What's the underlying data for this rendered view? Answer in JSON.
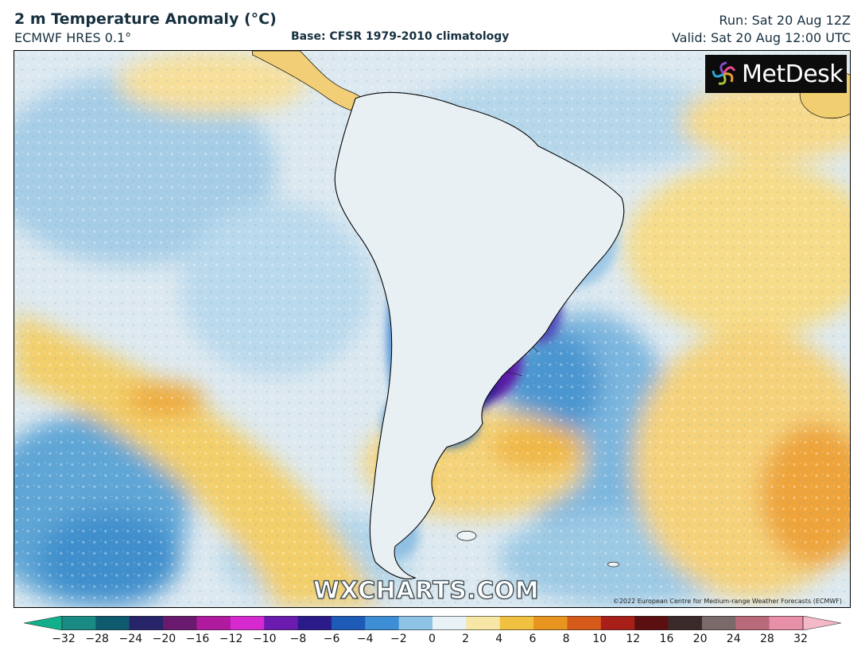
{
  "header": {
    "title": "2 m Temperature Anomaly (°C)",
    "model": "ECMWF HRES 0.1°",
    "base": "Base: CFSR 1979-2010 climatology",
    "run": "Run: Sat 20 Aug 12Z",
    "valid": "Valid: Sat 20 Aug 12:00 UTC"
  },
  "branding": {
    "logo_text": "MetDesk",
    "watermark": "WXCHARTS.COM",
    "copyright": "©2022 European Centre for Medium-range Weather Forecasts (ECMWF)"
  },
  "colorbar": {
    "labels": [
      "−32",
      "−28",
      "−24",
      "−20",
      "−16",
      "−12",
      "−10",
      "−8",
      "−6",
      "−4",
      "−2",
      "0",
      "2",
      "4",
      "6",
      "8",
      "10",
      "12",
      "16",
      "20",
      "24",
      "28",
      "32"
    ],
    "colors": [
      "#12b08a",
      "#1a8a84",
      "#0f5a6e",
      "#27246a",
      "#6a1a6e",
      "#b01a9e",
      "#d62ad0",
      "#6c1bb0",
      "#2a1a8a",
      "#1e5ab8",
      "#3d8ed4",
      "#8fc3e6",
      "#e8f2f6",
      "#f7e7a6",
      "#f0c040",
      "#e89520",
      "#d65a1a",
      "#a81e18",
      "#5c0f10",
      "#3a2a2a",
      "#7a6a6a",
      "#b86a7a",
      "#e890a8",
      "#f5b8c8"
    ]
  },
  "map": {
    "region": "South America",
    "palette": {
      "ocean_warm": "#f5d97a",
      "ocean_cool": "#9fcbe6",
      "cold_core": "#c21bc8",
      "cold_ring": "#4a2aa8",
      "land_blue": "#2f78c4"
    }
  }
}
